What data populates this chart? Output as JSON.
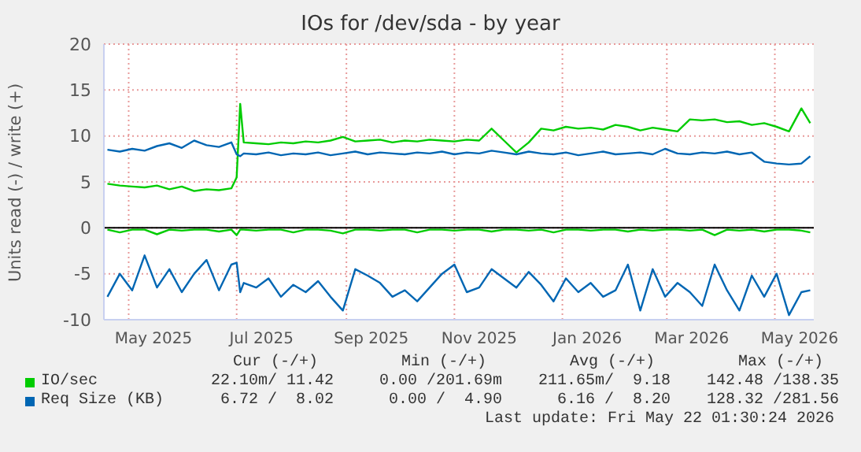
{
  "chart_data": {
    "type": "line",
    "title": "IOs for /dev/sda - by year",
    "ylabel": "Units read (-) / write (+)",
    "x": [
      "2025-04-19",
      "2025-04-26",
      "2025-05-03",
      "2025-05-10",
      "2025-05-17",
      "2025-05-24",
      "2025-05-31",
      "2025-06-07",
      "2025-06-14",
      "2025-06-21",
      "2025-06-28",
      "2025-07-01",
      "2025-07-03",
      "2025-07-05",
      "2025-07-12",
      "2025-07-19",
      "2025-07-26",
      "2025-08-02",
      "2025-08-09",
      "2025-08-16",
      "2025-08-23",
      "2025-08-30",
      "2025-09-06",
      "2025-09-13",
      "2025-09-20",
      "2025-09-27",
      "2025-10-04",
      "2025-10-11",
      "2025-10-18",
      "2025-10-25",
      "2025-11-01",
      "2025-11-08",
      "2025-11-15",
      "2025-11-22",
      "2025-11-29",
      "2025-12-06",
      "2025-12-13",
      "2025-12-20",
      "2025-12-27",
      "2026-01-03",
      "2026-01-10",
      "2026-01-17",
      "2026-01-24",
      "2026-01-31",
      "2026-02-07",
      "2026-02-14",
      "2026-02-21",
      "2026-02-28",
      "2026-03-07",
      "2026-03-14",
      "2026-03-21",
      "2026-03-28",
      "2026-04-04",
      "2026-04-11",
      "2026-04-18",
      "2026-04-25",
      "2026-05-02",
      "2026-05-09",
      "2026-05-16",
      "2026-05-21"
    ],
    "series": [
      {
        "name": "IO/sec",
        "color": "#00cc00",
        "values": [
          4.8,
          4.6,
          4.5,
          4.4,
          4.6,
          4.2,
          4.5,
          4.0,
          4.2,
          4.1,
          4.3,
          5.5,
          13.5,
          9.3,
          9.2,
          9.1,
          9.3,
          9.2,
          9.4,
          9.3,
          9.5,
          9.9,
          9.4,
          9.5,
          9.6,
          9.3,
          9.5,
          9.4,
          9.6,
          9.5,
          9.4,
          9.6,
          9.5,
          10.8,
          9.5,
          8.2,
          9.3,
          10.8,
          10.6,
          11.0,
          10.8,
          10.9,
          10.7,
          11.2,
          11.0,
          10.6,
          10.9,
          10.7,
          10.5,
          11.8,
          11.7,
          11.8,
          11.5,
          11.6,
          11.2,
          11.4,
          11.0,
          10.5,
          13.0,
          11.4
        ]
      },
      {
        "color": "#00cc00",
        "values": [
          -0.2,
          -0.5,
          -0.2,
          -0.2,
          -0.7,
          -0.2,
          -0.3,
          -0.2,
          -0.2,
          -0.4,
          -0.2,
          -0.8,
          -0.2,
          -0.2,
          -0.3,
          -0.2,
          -0.2,
          -0.5,
          -0.2,
          -0.2,
          -0.3,
          -0.6,
          -0.2,
          -0.2,
          -0.3,
          -0.2,
          -0.2,
          -0.5,
          -0.2,
          -0.2,
          -0.3,
          -0.2,
          -0.2,
          -0.4,
          -0.2,
          -0.2,
          -0.3,
          -0.2,
          -0.5,
          -0.2,
          -0.2,
          -0.3,
          -0.2,
          -0.2,
          -0.4,
          -0.2,
          -0.3,
          -0.2,
          -0.2,
          -0.3,
          -0.2,
          -0.8,
          -0.2,
          -0.3,
          -0.2,
          -0.4,
          -0.2,
          -0.2,
          -0.3,
          -0.5
        ]
      },
      {
        "name": "Req Size (KB)",
        "color": "#0066b3",
        "values": [
          8.5,
          8.3,
          8.6,
          8.4,
          8.9,
          9.2,
          8.7,
          9.5,
          9.0,
          8.8,
          9.3,
          8.0,
          7.8,
          8.1,
          8.0,
          8.2,
          7.9,
          8.1,
          8.0,
          8.2,
          7.9,
          8.1,
          8.3,
          8.0,
          8.2,
          8.1,
          8.0,
          8.2,
          8.1,
          8.3,
          8.0,
          8.2,
          8.1,
          8.4,
          8.2,
          8.0,
          8.3,
          8.1,
          8.0,
          8.2,
          7.9,
          8.1,
          8.3,
          8.0,
          8.1,
          8.2,
          8.0,
          8.6,
          8.1,
          8.0,
          8.2,
          8.1,
          8.3,
          8.0,
          8.2,
          7.2,
          7.0,
          6.9,
          7.0,
          7.8
        ]
      },
      {
        "color": "#0066b3",
        "values": [
          -7.5,
          -5.0,
          -6.8,
          -3.0,
          -6.5,
          -4.5,
          -7.0,
          -5.0,
          -3.5,
          -6.8,
          -4.0,
          -3.8,
          -7.0,
          -6.0,
          -6.5,
          -5.5,
          -7.5,
          -6.2,
          -7.0,
          -5.8,
          -7.5,
          -9.0,
          -4.5,
          -5.2,
          -6.0,
          -7.5,
          -6.8,
          -8.0,
          -6.5,
          -5.0,
          -4.0,
          -7.0,
          -6.5,
          -4.5,
          -5.5,
          -6.5,
          -4.8,
          -6.2,
          -8.0,
          -5.5,
          -7.0,
          -6.0,
          -7.5,
          -6.8,
          -4.0,
          -9.0,
          -4.5,
          -7.5,
          -6.0,
          -7.0,
          -8.5,
          -4.0,
          -6.8,
          -9.0,
          -5.2,
          -7.5,
          -5.0,
          -9.5,
          -7.0,
          -6.8
        ]
      }
    ],
    "xlim": [
      "2025-04-17",
      "2026-05-23"
    ],
    "xticks": [
      {
        "value": "2025-05-01",
        "label": null
      },
      {
        "value": "2025-05-15",
        "label": "May 2025"
      },
      {
        "value": "2025-07-01",
        "label": null
      },
      {
        "value": "2025-07-15",
        "label": "Jul 2025"
      },
      {
        "value": "2025-09-01",
        "label": null
      },
      {
        "value": "2025-09-15",
        "label": "Sep 2025"
      },
      {
        "value": "2025-11-01",
        "label": null
      },
      {
        "value": "2025-11-15",
        "label": "Nov 2025"
      },
      {
        "value": "2026-01-01",
        "label": null
      },
      {
        "value": "2026-01-15",
        "label": "Jan 2026"
      },
      {
        "value": "2026-03-01",
        "label": null
      },
      {
        "value": "2026-03-15",
        "label": "Mar 2026"
      },
      {
        "value": "2026-05-01",
        "label": null
      },
      {
        "value": "2026-05-15",
        "label": "May 2026"
      }
    ],
    "ylim": [
      -10,
      20
    ],
    "yticks": [
      -10,
      -5,
      0,
      5,
      10,
      15,
      20
    ],
    "grid": true,
    "legend": "bottom",
    "ref_lines": [
      {
        "axis": "y",
        "value": 0,
        "color": "#000000"
      }
    ],
    "annotations": [
      "Cur (-/+)",
      "Min (-/+)",
      "Avg (-/+)",
      "Max (-/+)",
      "22.10m/ 11.42",
      "0.00 /201.69m",
      "211.65m/  9.18",
      "142.48 /138.35",
      "6.72 /  8.02",
      "0.00 /  4.90",
      "6.16 /  8.20",
      "128.32 /281.56",
      "Last update: Fri May 22 01:30:24 2026"
    ]
  }
}
